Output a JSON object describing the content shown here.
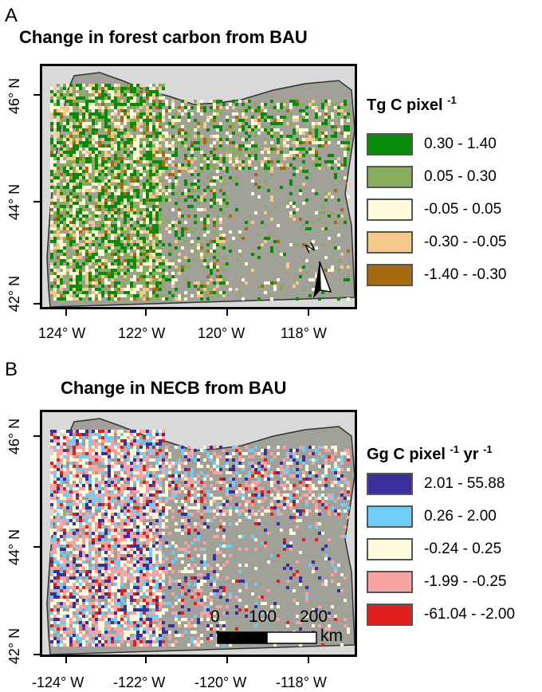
{
  "panel_a": {
    "letter": "A",
    "title": "Change in forest carbon from BAU",
    "lat_labels": [
      "46° N",
      "44° N",
      "42° N"
    ],
    "lon_labels": [
      "124° W",
      "122° W",
      "120° W",
      "118° W"
    ],
    "legend_title": "Tg C pixel",
    "legend_title_sup": "-1",
    "legend": [
      {
        "label": "0.30 - 1.40",
        "color": "#0a8a0a"
      },
      {
        "label": "0.05 - 0.30",
        "color": "#86ad5e"
      },
      {
        "label": "-0.05 - 0.05",
        "color": "#fffbdc"
      },
      {
        "label": "-0.30 - -0.05",
        "color": "#f5c987"
      },
      {
        "label": "-1.40 - -0.30",
        "color": "#a66a10"
      }
    ],
    "north_label": "N"
  },
  "panel_b": {
    "letter": "B",
    "title": "Change in NECB from BAU",
    "lat_labels": [
      "46° N",
      "44° N",
      "42° N"
    ],
    "lon_labels": [
      "-124° W",
      "-122° W",
      "-120° W",
      "-118° W"
    ],
    "legend_title": "Gg C pixel",
    "legend_title_sup1": "-1",
    "legend_title_mid": "yr",
    "legend_title_sup2": "-1",
    "legend": [
      {
        "label": "2.01 - 55.88",
        "color": "#3b2f9a"
      },
      {
        "label": "0.26 - 2.00",
        "color": "#6fcdfa"
      },
      {
        "label": "-0.24 - 0.25",
        "color": "#fffbdc"
      },
      {
        "label": "-1.99 - -0.25",
        "color": "#f9a3a3"
      },
      {
        "label": "-61.04 - -2.00",
        "color": "#e0201c"
      }
    ],
    "scalebar": {
      "ticks": [
        "0",
        "100",
        "200"
      ],
      "unit": "km"
    }
  },
  "map_colors": {
    "background": "#d9d9d9",
    "land": "#a1a19a",
    "outline": "#333333"
  }
}
